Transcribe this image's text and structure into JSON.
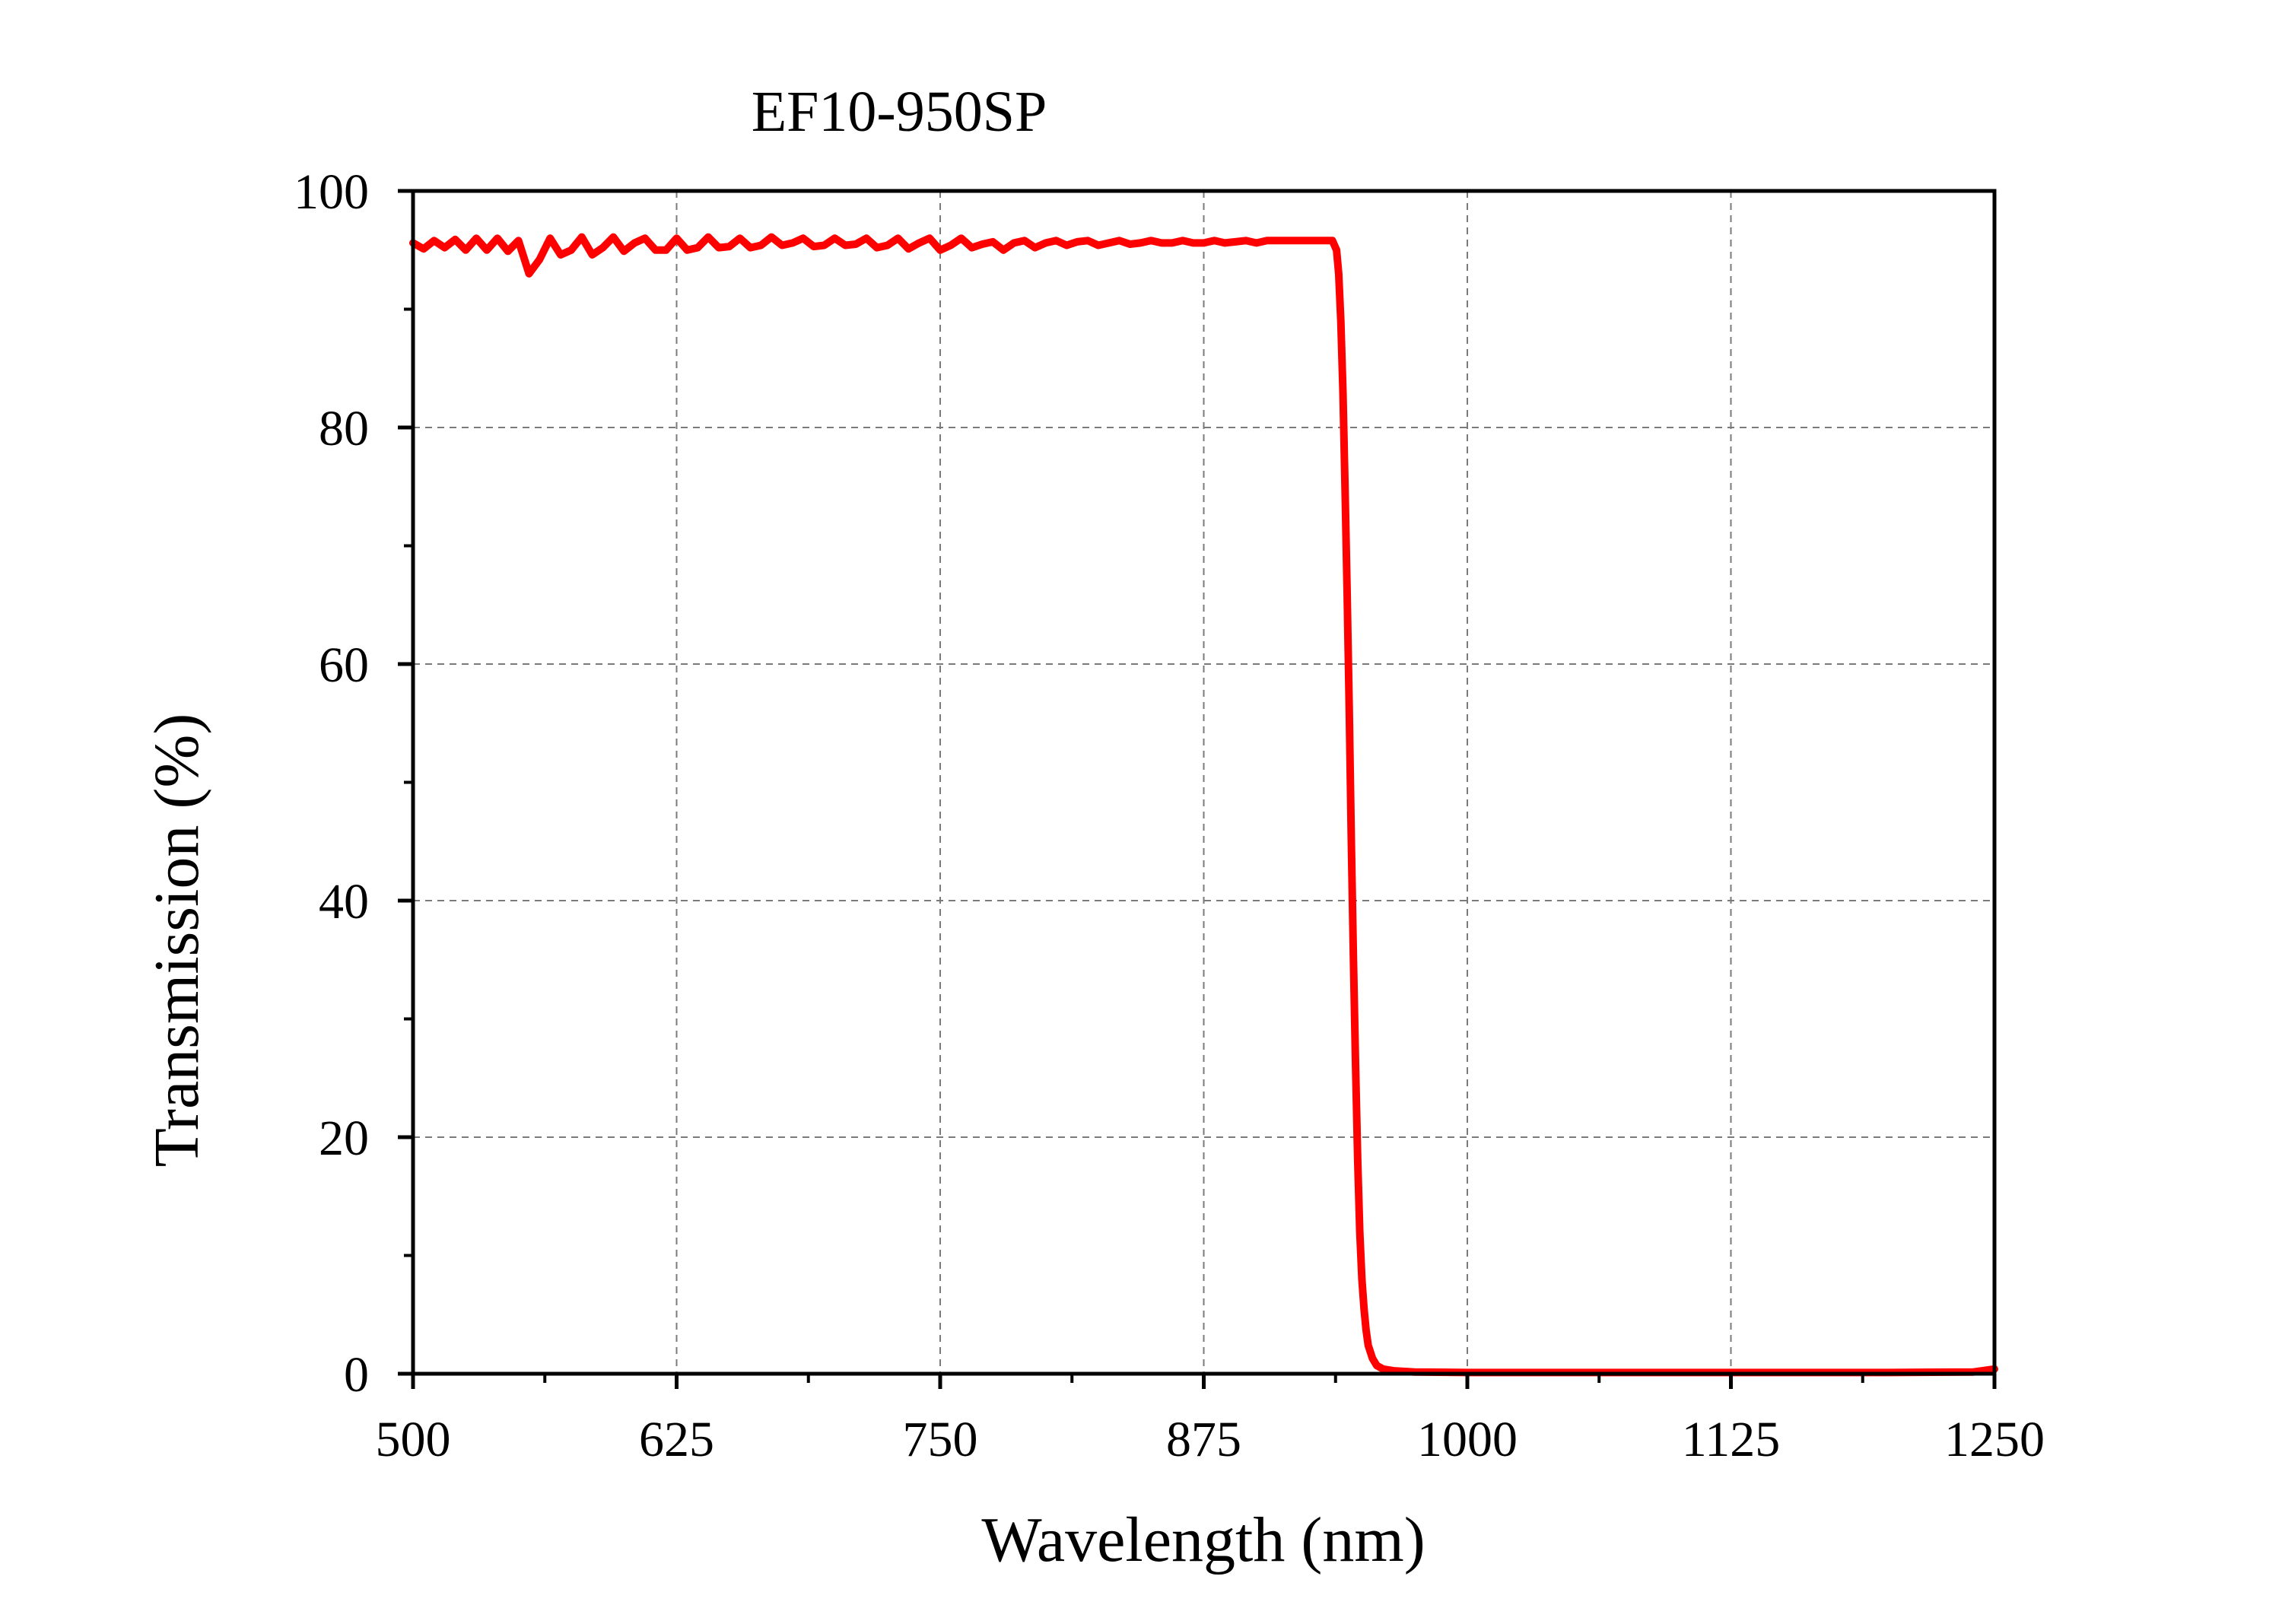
{
  "chart_data": {
    "type": "line",
    "title": "EF10-950SP",
    "xlabel": "Wavelength (nm)",
    "ylabel": "Transmission (%)",
    "xlim": [
      500,
      1250
    ],
    "ylim": [
      0,
      100
    ],
    "x_ticks": [
      500,
      625,
      750,
      875,
      1000,
      1125,
      1250
    ],
    "y_ticks": [
      0,
      20,
      40,
      60,
      80,
      100
    ],
    "x_tick_labels": [
      "500",
      "625",
      "750",
      "875",
      "1000",
      "1125",
      "1250"
    ],
    "y_tick_labels": [
      "0",
      "20",
      "40",
      "60",
      "80",
      "100"
    ],
    "grid": true,
    "grid_style": "dashed",
    "legend": "none",
    "series": [
      {
        "color": "#ff0000",
        "points": [
          [
            500,
            95.6
          ],
          [
            505,
            95.1
          ],
          [
            510,
            95.8
          ],
          [
            515,
            95.2
          ],
          [
            520,
            95.9
          ],
          [
            525,
            95.0
          ],
          [
            530,
            96.0
          ],
          [
            535,
            95.0
          ],
          [
            540,
            96.0
          ],
          [
            545,
            94.9
          ],
          [
            550,
            95.8
          ],
          [
            555,
            93.0
          ],
          [
            560,
            94.2
          ],
          [
            565,
            96.0
          ],
          [
            570,
            94.6
          ],
          [
            575,
            95.0
          ],
          [
            580,
            96.1
          ],
          [
            585,
            94.6
          ],
          [
            590,
            95.2
          ],
          [
            595,
            96.1
          ],
          [
            600,
            94.9
          ],
          [
            605,
            95.6
          ],
          [
            610,
            96.0
          ],
          [
            615,
            95.0
          ],
          [
            620,
            95.0
          ],
          [
            625,
            96.0
          ],
          [
            630,
            95.0
          ],
          [
            635,
            95.2
          ],
          [
            640,
            96.1
          ],
          [
            645,
            95.2
          ],
          [
            650,
            95.3
          ],
          [
            655,
            96.0
          ],
          [
            660,
            95.2
          ],
          [
            665,
            95.4
          ],
          [
            670,
            96.1
          ],
          [
            675,
            95.4
          ],
          [
            680,
            95.6
          ],
          [
            685,
            96.0
          ],
          [
            690,
            95.3
          ],
          [
            695,
            95.4
          ],
          [
            700,
            96.0
          ],
          [
            705,
            95.4
          ],
          [
            710,
            95.5
          ],
          [
            715,
            96.0
          ],
          [
            720,
            95.2
          ],
          [
            725,
            95.4
          ],
          [
            730,
            96.0
          ],
          [
            735,
            95.1
          ],
          [
            740,
            95.6
          ],
          [
            745,
            96.0
          ],
          [
            750,
            95.0
          ],
          [
            755,
            95.4
          ],
          [
            760,
            96.0
          ],
          [
            765,
            95.2
          ],
          [
            770,
            95.5
          ],
          [
            775,
            95.7
          ],
          [
            780,
            95.0
          ],
          [
            785,
            95.6
          ],
          [
            790,
            95.8
          ],
          [
            795,
            95.2
          ],
          [
            800,
            95.6
          ],
          [
            805,
            95.8
          ],
          [
            810,
            95.4
          ],
          [
            815,
            95.7
          ],
          [
            820,
            95.8
          ],
          [
            825,
            95.4
          ],
          [
            830,
            95.6
          ],
          [
            835,
            95.8
          ],
          [
            840,
            95.5
          ],
          [
            845,
            95.6
          ],
          [
            850,
            95.8
          ],
          [
            855,
            95.6
          ],
          [
            860,
            95.6
          ],
          [
            865,
            95.8
          ],
          [
            870,
            95.6
          ],
          [
            875,
            95.6
          ],
          [
            880,
            95.8
          ],
          [
            885,
            95.6
          ],
          [
            890,
            95.7
          ],
          [
            895,
            95.8
          ],
          [
            900,
            95.6
          ],
          [
            905,
            95.8
          ],
          [
            910,
            95.8
          ],
          [
            915,
            95.8
          ],
          [
            936,
            95.8
          ],
          [
            938,
            95.0
          ],
          [
            939,
            93.0
          ],
          [
            940,
            89.0
          ],
          [
            941,
            83.0
          ],
          [
            942,
            75.0
          ],
          [
            943,
            66.0
          ],
          [
            944,
            56.0
          ],
          [
            945,
            45.0
          ],
          [
            946,
            35.0
          ],
          [
            947,
            26.0
          ],
          [
            948,
            18.0
          ],
          [
            949,
            12.0
          ],
          [
            950,
            8.0
          ],
          [
            951,
            5.5
          ],
          [
            952,
            3.7
          ],
          [
            953,
            2.4
          ],
          [
            955,
            1.3
          ],
          [
            957,
            0.7
          ],
          [
            960,
            0.4
          ],
          [
            965,
            0.25
          ],
          [
            975,
            0.15
          ],
          [
            1000,
            0.1
          ],
          [
            1100,
            0.1
          ],
          [
            1200,
            0.1
          ],
          [
            1240,
            0.15
          ],
          [
            1250,
            0.4
          ]
        ]
      }
    ]
  }
}
